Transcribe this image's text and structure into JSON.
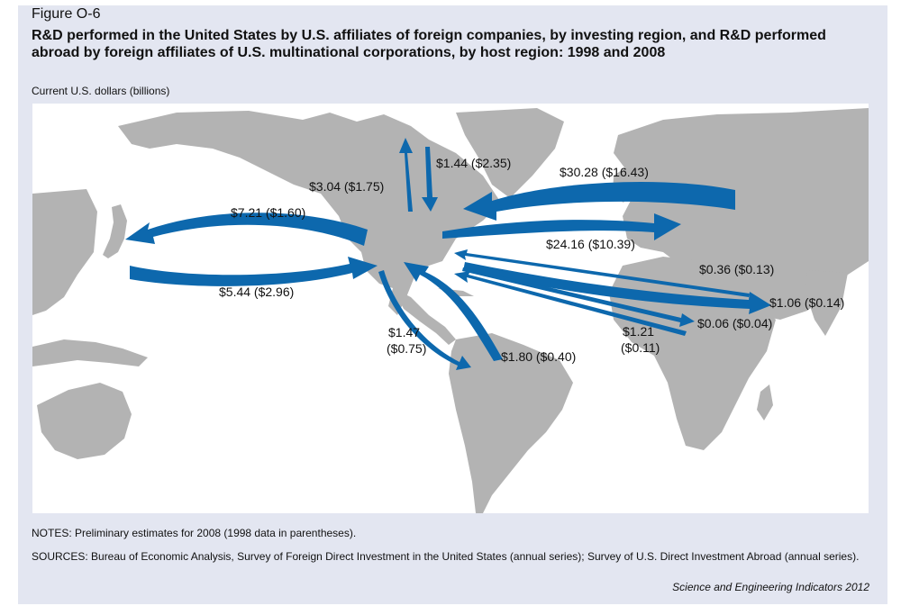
{
  "figure": {
    "label": "Figure O-6",
    "title": "R&D performed in the United States by U.S. affiliates of foreign companies, by investing region, and R&D performed abroad by foreign affiliates of U.S. multinational corporations, by host region: 1998 and 2008",
    "units": "Current U.S. dollars (billions)"
  },
  "colors": {
    "background": "#e3e6f1",
    "ocean": "#ffffff",
    "land": "#b3b3b3",
    "arrow": "#0d68ad"
  },
  "flows": [
    {
      "id": "us-canada",
      "label": "$3.04 ($1.75)"
    },
    {
      "id": "canada-us",
      "label": "$1.44 ($2.35)"
    },
    {
      "id": "us-asia-pacific",
      "label": "$7.21 ($1.60)"
    },
    {
      "id": "asia-pacific-us",
      "label": "$5.44 ($2.96)"
    },
    {
      "id": "europe-us",
      "label": "$30.28 ($16.43)"
    },
    {
      "id": "us-europe",
      "label": "$24.16 ($10.39)"
    },
    {
      "id": "middle-east-us",
      "label": "$0.36 ($0.13)"
    },
    {
      "id": "us-middle-east",
      "label": "$1.06 ($0.14)"
    },
    {
      "id": "us-africa",
      "label": "$0.06 ($0.04)"
    },
    {
      "id": "africa-us",
      "label_line1": "$1.21",
      "label_line2": "($0.11)"
    },
    {
      "id": "us-latin-america",
      "label_line1": "$1.47",
      "label_line2": "($0.75)"
    },
    {
      "id": "latin-america-us",
      "label": "$1.80 ($0.40)"
    }
  ],
  "notes": "NOTES: Preliminary estimates for 2008 (1998 data in parentheses).",
  "sources": "SOURCES: Bureau of Economic Analysis, Survey of Foreign Direct Investment in the United States (annual series); Survey of U.S. Direct Investment Abroad (annual series).",
  "credit": "Science and Engineering Indicators 2012"
}
